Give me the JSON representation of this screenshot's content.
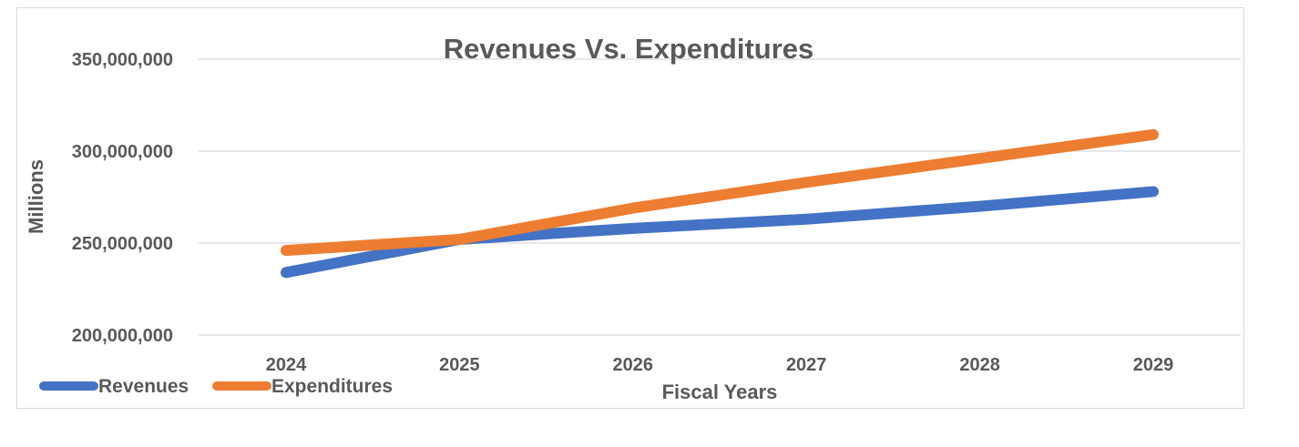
{
  "chart_data": {
    "type": "line",
    "title": "Revenues Vs. Expenditures",
    "xlabel": "Fiscal Years",
    "ylabel": "Millions",
    "categories": [
      "2024",
      "2025",
      "2026",
      "2027",
      "2028",
      "2029"
    ],
    "y_ticks": [
      "200,000,000",
      "250,000,000",
      "300,000,000",
      "350,000,000"
    ],
    "y_tick_values": [
      200000000,
      250000000,
      300000000,
      350000000
    ],
    "ylim": [
      200000000,
      350000000
    ],
    "grid": true,
    "legend_position": "bottom-left",
    "series": [
      {
        "name": "Revenues",
        "color": "#4472c4",
        "values": [
          234000000,
          252000000,
          258000000,
          263000000,
          270000000,
          278000000
        ]
      },
      {
        "name": "Expenditures",
        "color": "#ed7d31",
        "values": [
          246000000,
          252000000,
          269000000,
          283000000,
          296000000,
          309000000
        ]
      }
    ]
  }
}
